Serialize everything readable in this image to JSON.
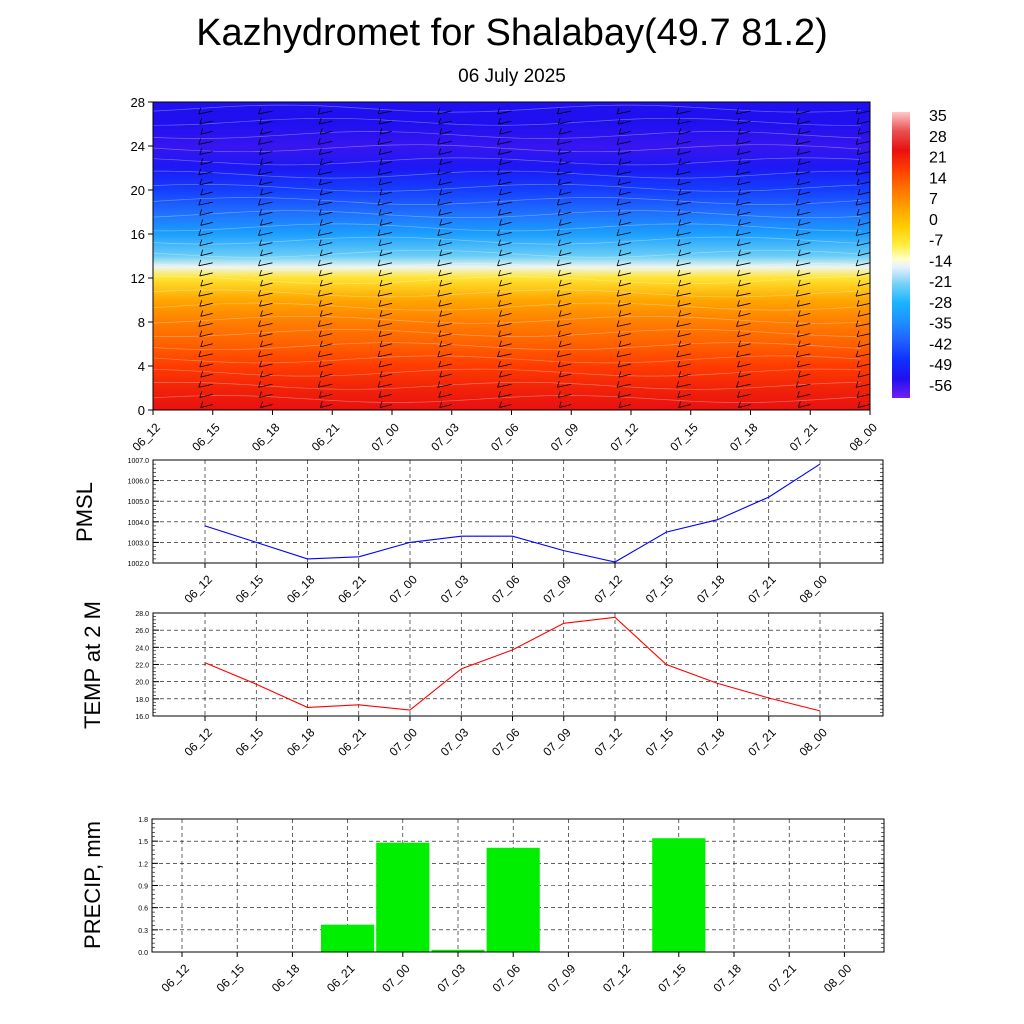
{
  "header": {
    "title": "Kazhydromet for Shalabay(49.7 81.2)",
    "subtitle": "06 July 2025"
  },
  "time_labels": [
    "06_12",
    "06_15",
    "06_18",
    "06_21",
    "07_00",
    "07_03",
    "07_06",
    "07_09",
    "07_12",
    "07_15",
    "07_18",
    "07_21",
    "08_00"
  ],
  "colors": {
    "pmsl_line": "#0000ff",
    "temp_line": "#ff0000",
    "precip_bar": "#00ee00",
    "grid": "#000000"
  },
  "chart_data": [
    {
      "id": "cross-section",
      "type": "heatmap",
      "title": "",
      "xlabel": "",
      "ylabel": "",
      "x": [
        "06_12",
        "06_15",
        "06_18",
        "06_21",
        "07_00",
        "07_03",
        "07_06",
        "07_09",
        "07_12",
        "07_15",
        "07_18",
        "07_21",
        "08_00"
      ],
      "yticks": [
        0,
        4,
        8,
        12,
        16,
        20,
        24,
        28
      ],
      "ylim": [
        0,
        28
      ],
      "colorbar_labels": [
        "35",
        "28",
        "21",
        "14",
        "7",
        "0",
        "-7",
        "-14",
        "-21",
        "-28",
        "-35",
        "-42",
        "-49",
        "-56"
      ],
      "colorbar_range": [
        -63,
        42
      ],
      "profile": [
        {
          "level": 0,
          "value": 28
        },
        {
          "level": 2,
          "value": 25
        },
        {
          "level": 4,
          "value": 21
        },
        {
          "level": 6,
          "value": 16
        },
        {
          "level": 8,
          "value": 12
        },
        {
          "level": 10,
          "value": 6
        },
        {
          "level": 12,
          "value": -5
        },
        {
          "level": 13,
          "value": -14
        },
        {
          "level": 14,
          "value": -22
        },
        {
          "level": 16,
          "value": -32
        },
        {
          "level": 18,
          "value": -40
        },
        {
          "level": 20,
          "value": -47
        },
        {
          "level": 22,
          "value": -54
        },
        {
          "level": 24,
          "value": -58
        },
        {
          "level": 26,
          "value": -56
        },
        {
          "level": 28,
          "value": -56
        }
      ],
      "wind_barbs": "shown"
    },
    {
      "id": "pmsl",
      "type": "line",
      "ylabel": "PMSL",
      "x": [
        "06_12",
        "06_15",
        "06_18",
        "06_21",
        "07_00",
        "07_03",
        "07_06",
        "07_09",
        "07_12",
        "07_15",
        "07_18",
        "07_21",
        "08_00"
      ],
      "series": [
        {
          "values": [
            1003.8,
            1003.0,
            1002.2,
            1002.3,
            1003.0,
            1003.3,
            1003.3,
            1002.6,
            1002.05,
            1003.5,
            1004.1,
            1005.2,
            1006.8
          ]
        }
      ],
      "ylim": [
        1002.0,
        1007.0
      ],
      "yticks": [
        "1002.0",
        "1003.0",
        "1004.0",
        "1005.0",
        "1006.0",
        "1007.0"
      ],
      "grid": true
    },
    {
      "id": "temp",
      "type": "line",
      "ylabel": "TEMP at 2 M",
      "x": [
        "06_12",
        "06_15",
        "06_18",
        "06_21",
        "07_00",
        "07_03",
        "07_06",
        "07_09",
        "07_12",
        "07_15",
        "07_18",
        "07_21",
        "08_00"
      ],
      "series": [
        {
          "values": [
            22.2,
            19.7,
            17.0,
            17.3,
            16.7,
            21.5,
            23.7,
            26.8,
            27.5,
            22.0,
            19.8,
            18.1,
            16.6
          ]
        }
      ],
      "ylim": [
        16.0,
        28.0
      ],
      "yticks": [
        "16.0",
        "18.0",
        "20.0",
        "22.0",
        "24.0",
        "26.0",
        "28.0"
      ],
      "grid": true
    },
    {
      "id": "precip",
      "type": "bar",
      "ylabel": "PRECIP, mm",
      "categories": [
        "06_12",
        "06_15",
        "06_18",
        "06_21",
        "07_00",
        "07_03",
        "07_06",
        "07_09",
        "07_12",
        "07_15",
        "07_18",
        "07_21",
        "08_00"
      ],
      "values": [
        0,
        0,
        0,
        0.37,
        1.48,
        0.03,
        1.41,
        0,
        0,
        1.54,
        0,
        0,
        0
      ],
      "ylim": [
        0.0,
        1.8
      ],
      "yticks": [
        "0.0",
        "0.3",
        "0.6",
        "0.9",
        "1.2",
        "1.5",
        "1.8"
      ],
      "grid": true
    }
  ]
}
